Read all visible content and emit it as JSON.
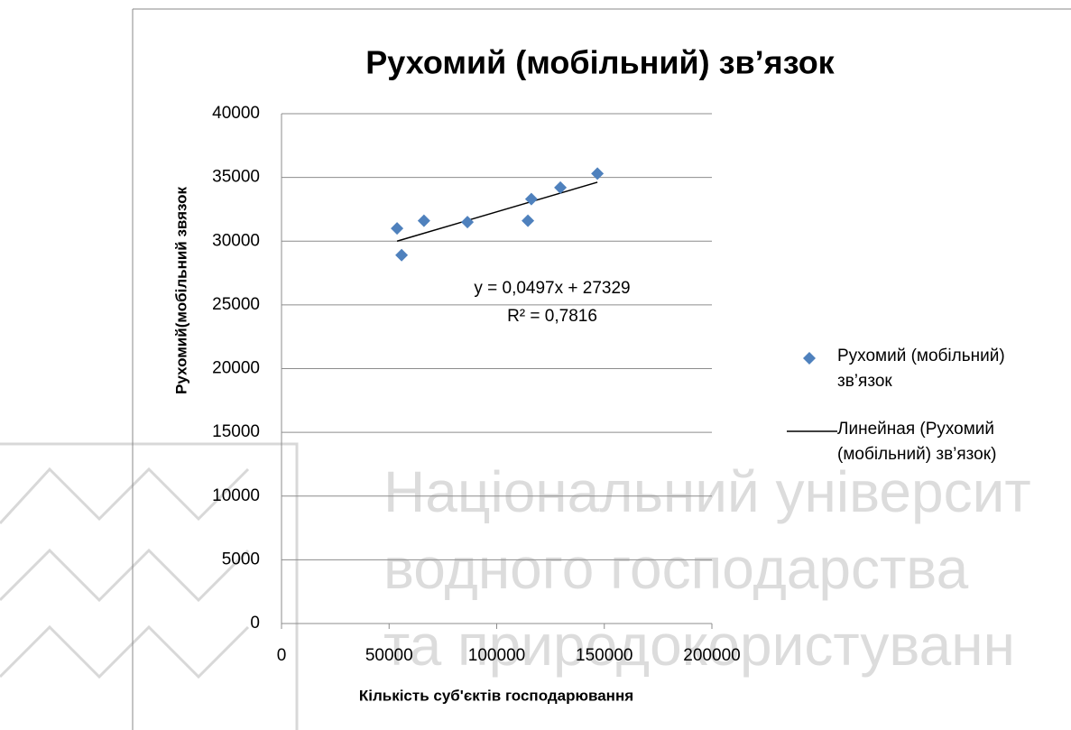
{
  "chart_data": {
    "type": "scatter",
    "title": "Рухомий (мобільний) зв’язок",
    "xlabel": "Кількість суб'єктів господарювання",
    "ylabel": "Рухомий(мобільний звязок",
    "series": [
      {
        "name": "Рухомий (мобільний) зв’язок",
        "color": "#4f81bd",
        "x": [
          53700,
          55800,
          66200,
          86400,
          114500,
          116100,
          129600,
          146800
        ],
        "values": [
          31000,
          28900,
          31600,
          31500,
          31600,
          33300,
          34200,
          35300
        ]
      }
    ],
    "trendline": {
      "name": "Линейная (Рухомий (мобільний) зв’язок)",
      "color": "#000000",
      "x": [
        53700,
        146800
      ],
      "values": [
        30000,
        34625
      ]
    },
    "annotations": [
      "y = 0,0497x + 27329",
      "R² = 0,7816"
    ],
    "xlim": [
      0,
      200000
    ],
    "xticks": [
      0,
      50000,
      100000,
      150000,
      200000
    ],
    "ylim": [
      0,
      40000
    ],
    "yticks": [
      0,
      5000,
      10000,
      15000,
      20000,
      25000,
      30000,
      35000,
      40000
    ],
    "grid": true,
    "legend": "right"
  },
  "watermark": [
    "Національний університ",
    "водного господарства",
    "та природокористуванн"
  ]
}
